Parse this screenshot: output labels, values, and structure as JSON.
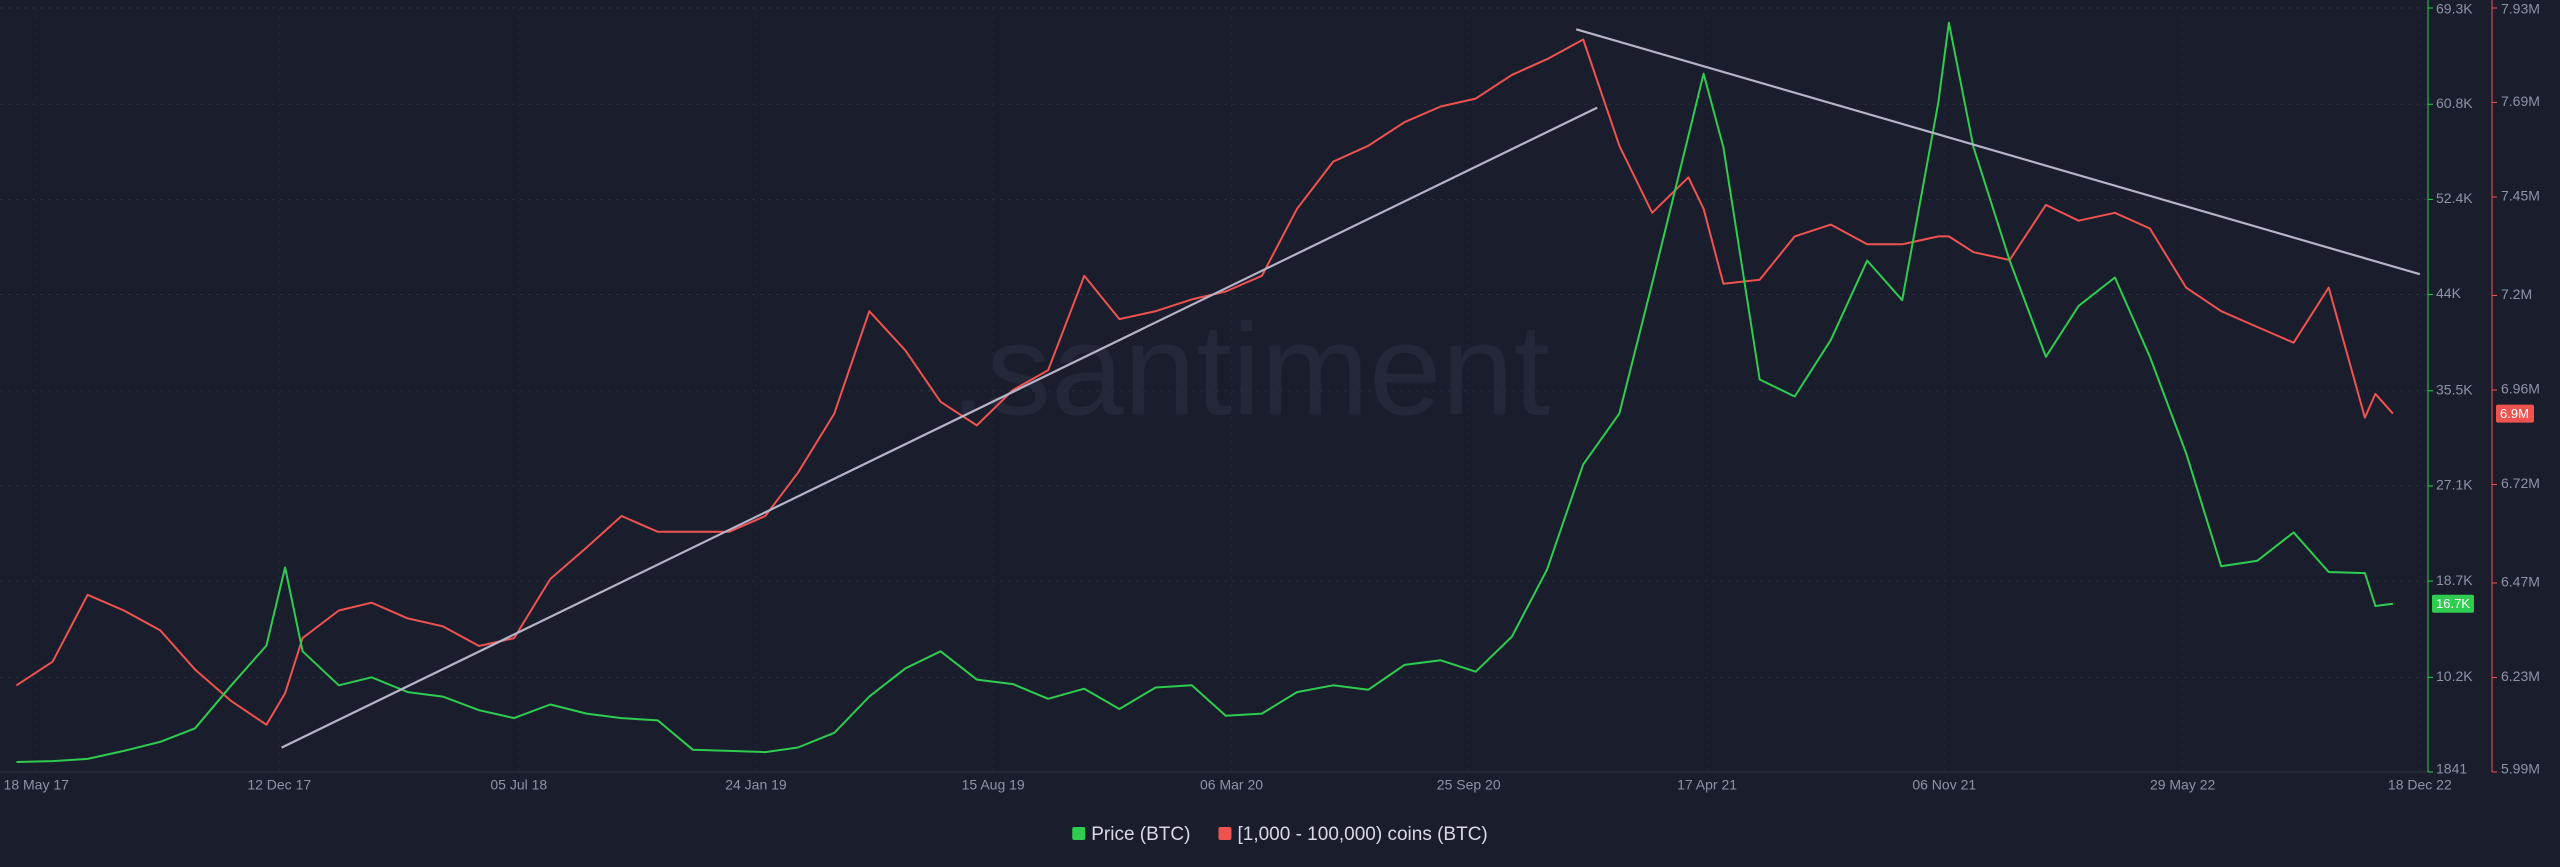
{
  "chart_data": {
    "type": "line",
    "watermark": ".santiment",
    "x": [
      "2017-05-01",
      "2017-06-01",
      "2017-07-01",
      "2017-08-01",
      "2017-09-01",
      "2017-10-01",
      "2017-11-01",
      "2017-12-01",
      "2017-12-17",
      "2018-01-01",
      "2018-02-01",
      "2018-03-01",
      "2018-04-01",
      "2018-05-01",
      "2018-06-01",
      "2018-07-01",
      "2018-08-01",
      "2018-09-01",
      "2018-10-01",
      "2018-11-01",
      "2018-12-01",
      "2019-01-01",
      "2019-02-01",
      "2019-03-01",
      "2019-04-01",
      "2019-05-01",
      "2019-06-01",
      "2019-07-01",
      "2019-08-01",
      "2019-09-01",
      "2019-10-01",
      "2019-11-01",
      "2019-12-01",
      "2020-01-01",
      "2020-02-01",
      "2020-03-01",
      "2020-04-01",
      "2020-05-01",
      "2020-06-01",
      "2020-07-01",
      "2020-08-01",
      "2020-09-01",
      "2020-10-01",
      "2020-11-01",
      "2020-12-01",
      "2021-01-01",
      "2021-02-01",
      "2021-03-01",
      "2021-04-01",
      "2021-04-14",
      "2021-05-01",
      "2021-06-01",
      "2021-07-01",
      "2021-08-01",
      "2021-09-01",
      "2021-10-01",
      "2021-11-01",
      "2021-11-10",
      "2021-12-01",
      "2022-01-01",
      "2022-02-01",
      "2022-03-01",
      "2022-04-01",
      "2022-05-01",
      "2022-06-01",
      "2022-07-01",
      "2022-08-01",
      "2022-09-01",
      "2022-10-01",
      "2022-11-01",
      "2022-11-10",
      "2022-11-25"
    ],
    "xlim": [
      "2017-04-17",
      "2022-12-25"
    ],
    "xticks": [
      {
        "value": "2017-05-18",
        "label": "18 May 17"
      },
      {
        "value": "2017-12-12",
        "label": "12 Dec 17"
      },
      {
        "value": "2018-07-05",
        "label": "05 Jul 18"
      },
      {
        "value": "2019-01-24",
        "label": "24 Jan 19"
      },
      {
        "value": "2019-08-15",
        "label": "15 Aug 19"
      },
      {
        "value": "2020-03-06",
        "label": "06 Mar 20"
      },
      {
        "value": "2020-09-25",
        "label": "25 Sep 20"
      },
      {
        "value": "2021-04-17",
        "label": "17 Apr 21"
      },
      {
        "value": "2021-11-06",
        "label": "06 Nov 21"
      },
      {
        "value": "2022-05-29",
        "label": "29 May 22"
      },
      {
        "value": "2022-12-18",
        "label": "18 Dec 22"
      }
    ],
    "ylim": [
      1841,
      69300
    ],
    "yticks": [
      1841,
      {
        "value": 10200,
        "label": "10.2K"
      },
      {
        "value": 18700,
        "label": "18.7K"
      },
      {
        "value": 27100,
        "label": "27.1K"
      },
      {
        "value": 35500,
        "label": "35.5K"
      },
      {
        "value": 44000,
        "label": "44K"
      },
      {
        "value": 52400,
        "label": "52.4K"
      },
      {
        "value": 60800,
        "label": "60.8K"
      },
      {
        "value": 69300,
        "label": "69.3K"
      }
    ],
    "y2lim": [
      5990000,
      7930000
    ],
    "y2ticks": [
      {
        "value": 5990000,
        "label": "5.99M"
      },
      {
        "value": 6230000,
        "label": "6.23M"
      },
      {
        "value": 6470000,
        "label": "6.47M"
      },
      {
        "value": 6720000,
        "label": "6.72M"
      },
      {
        "value": 6960000,
        "label": "6.96M"
      },
      {
        "value": 7200000,
        "label": "7.2M"
      },
      {
        "value": 7450000,
        "label": "7.45M"
      },
      {
        "value": 7690000,
        "label": "7.69M"
      },
      {
        "value": 7930000,
        "label": "7.93M"
      }
    ],
    "grid": true,
    "series": [
      {
        "name": "Price (BTC)",
        "color": "#2ecc4f",
        "axis": "y",
        "current": {
          "value": 16700,
          "label": "16.7K"
        },
        "values": [
          2720,
          2800,
          3000,
          3700,
          4500,
          5700,
          9500,
          13000,
          19900,
          12500,
          9500,
          10200,
          8900,
          8500,
          7300,
          6600,
          7800,
          7000,
          6600,
          6400,
          3800,
          3700,
          3600,
          4000,
          5300,
          8500,
          11000,
          12500,
          10000,
          9600,
          8300,
          9200,
          7400,
          9300,
          9500,
          6800,
          7000,
          8900,
          9500,
          9100,
          11300,
          11700,
          10700,
          13800,
          19700,
          29000,
          33500,
          45000,
          58000,
          63500,
          57000,
          36500,
          35000,
          40000,
          47000,
          43500,
          61000,
          68000,
          57000,
          47000,
          38500,
          43000,
          45500,
          38500,
          30000,
          20000,
          20500,
          23000,
          19500,
          19400,
          16500,
          16700
        ]
      },
      {
        "name": "[1,000 - 100,000) coins (BTC)",
        "color": "#ef5350",
        "axis": "y2",
        "current": {
          "value": 6900000,
          "label": "6.9M"
        },
        "values": [
          6210000,
          6270000,
          6440000,
          6400000,
          6350000,
          6250000,
          6170000,
          6110000,
          6190000,
          6330000,
          6400000,
          6420000,
          6380000,
          6360000,
          6310000,
          6330000,
          6480000,
          6560000,
          6640000,
          6600000,
          6600000,
          6600000,
          6640000,
          6750000,
          6900000,
          7160000,
          7060000,
          6930000,
          6870000,
          6960000,
          7010000,
          7250000,
          7140000,
          7160000,
          7190000,
          7210000,
          7250000,
          7420000,
          7540000,
          7580000,
          7640000,
          7680000,
          7700000,
          7760000,
          7800000,
          7850000,
          7580000,
          7410000,
          7500000,
          7420000,
          7230000,
          7240000,
          7350000,
          7380000,
          7330000,
          7330000,
          7350000,
          7350000,
          7310000,
          7290000,
          7430000,
          7390000,
          7410000,
          7370000,
          7220000,
          7160000,
          7120000,
          7080000,
          7220000,
          6890000,
          6950000,
          6900000
        ]
      }
    ],
    "trendlines": [
      {
        "axis": "y2",
        "x": [
          "2017-12-14",
          "2021-01-13"
        ],
        "y": [
          6052000,
          7677000
        ]
      },
      {
        "axis": "y2",
        "x": [
          "2020-12-26",
          "2022-12-18"
        ],
        "y": [
          7876000,
          7254000
        ]
      }
    ]
  }
}
